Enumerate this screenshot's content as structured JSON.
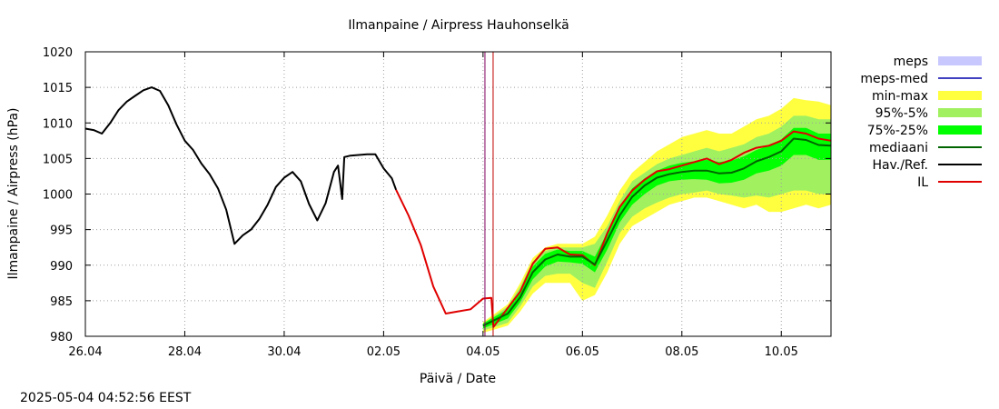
{
  "timestamp": "2025-05-04 04:52:56 EEST",
  "chart_data": {
    "type": "line",
    "title": "Ilmanpaine / Airpress Hauhonselkä",
    "xlabel": "Päivä / Date",
    "ylabel": "Ilmanpaine / Airpress (hPa)",
    "xlim": [
      "2025-04-26",
      "2025-05-11"
    ],
    "ylim": [
      980,
      1020
    ],
    "yticks": [
      980,
      985,
      990,
      995,
      1000,
      1005,
      1010,
      1015,
      1020
    ],
    "xticks": [
      "26.04",
      "28.04",
      "30.04",
      "02.05",
      "04.05",
      "06.05",
      "08.05",
      "10.05"
    ],
    "grid": true,
    "forecast_time": "2025-05-04 04:52",
    "legend": {
      "position": "right",
      "entries": [
        {
          "label": "meps",
          "color": "#c8c8ff",
          "style": "band"
        },
        {
          "label": "meps-med",
          "color": "#4040c0",
          "style": "line"
        },
        {
          "label": "min-max",
          "color": "#ffff40",
          "style": "band"
        },
        {
          "label": "95%-5%",
          "color": "#a0f060",
          "style": "band"
        },
        {
          "label": "75%-25%",
          "color": "#00ff00",
          "style": "band"
        },
        {
          "label": "mediaani",
          "color": "#006400",
          "style": "line"
        },
        {
          "label": "Hav./Ref.",
          "color": "#000000",
          "style": "line"
        },
        {
          "label": "IL",
          "color": "#e00000",
          "style": "line"
        }
      ]
    },
    "series": [
      {
        "name": "Hav./Ref.",
        "color": "#000000",
        "points": [
          [
            "2025-04-26 00:00",
            1009.2
          ],
          [
            "2025-04-26 04:00",
            1009.0
          ],
          [
            "2025-04-26 08:00",
            1008.5
          ],
          [
            "2025-04-26 12:00",
            1010.0
          ],
          [
            "2025-04-26 16:00",
            1011.8
          ],
          [
            "2025-04-26 20:00",
            1013.0
          ],
          [
            "2025-04-27 00:00",
            1013.8
          ],
          [
            "2025-04-27 04:00",
            1014.6
          ],
          [
            "2025-04-27 08:00",
            1015.0
          ],
          [
            "2025-04-27 12:00",
            1014.5
          ],
          [
            "2025-04-27 16:00",
            1012.5
          ],
          [
            "2025-04-27 20:00",
            1009.8
          ],
          [
            "2025-04-28 00:00",
            1007.5
          ],
          [
            "2025-04-28 04:00",
            1006.2
          ],
          [
            "2025-04-28 08:00",
            1004.3
          ],
          [
            "2025-04-28 12:00",
            1002.8
          ],
          [
            "2025-04-28 16:00",
            1000.8
          ],
          [
            "2025-04-28 20:00",
            997.8
          ],
          [
            "2025-04-29 00:00",
            993.0
          ],
          [
            "2025-04-29 04:00",
            994.2
          ],
          [
            "2025-04-29 08:00",
            995.0
          ],
          [
            "2025-04-29 12:00",
            996.5
          ],
          [
            "2025-04-29 16:00",
            998.5
          ],
          [
            "2025-04-29 20:00",
            1001.0
          ],
          [
            "2025-04-30 00:00",
            1002.3
          ],
          [
            "2025-04-30 04:00",
            1003.1
          ],
          [
            "2025-04-30 08:00",
            1001.8
          ],
          [
            "2025-04-30 12:00",
            998.6
          ],
          [
            "2025-04-30 16:00",
            996.3
          ],
          [
            "2025-04-30 20:00",
            998.7
          ],
          [
            "2025-05-01 00:00",
            1003.1
          ],
          [
            "2025-05-01 02:00",
            1004.0
          ],
          [
            "2025-05-01 04:00",
            999.3
          ],
          [
            "2025-05-01 05:00",
            1005.2
          ],
          [
            "2025-05-01 08:00",
            1005.4
          ],
          [
            "2025-05-01 16:00",
            1005.6
          ],
          [
            "2025-05-01 20:00",
            1005.6
          ],
          [
            "2025-05-02 00:00",
            1003.6
          ],
          [
            "2025-05-02 04:00",
            1002.2
          ],
          [
            "2025-05-02 06:00",
            1000.6
          ]
        ]
      },
      {
        "name": "IL",
        "color": "#e00000",
        "points": [
          [
            "2025-05-02 06:00",
            1000.6
          ],
          [
            "2025-05-02 12:00",
            997.0
          ],
          [
            "2025-05-02 18:00",
            992.8
          ],
          [
            "2025-05-03 00:00",
            987.0
          ],
          [
            "2025-05-03 06:00",
            983.2
          ],
          [
            "2025-05-03 12:00",
            983.5
          ],
          [
            "2025-05-03 18:00",
            983.8
          ],
          [
            "2025-05-04 00:00",
            985.3
          ],
          [
            "2025-05-04 04:00",
            985.4
          ],
          [
            "2025-05-04 05:00",
            981.3
          ],
          [
            "2025-05-04 12:00",
            984.0
          ],
          [
            "2025-05-04 18:00",
            986.3
          ],
          [
            "2025-05-05 00:00",
            990.2
          ],
          [
            "2025-05-05 06:00",
            992.3
          ],
          [
            "2025-05-05 12:00",
            992.5
          ],
          [
            "2025-05-05 18:00",
            991.5
          ],
          [
            "2025-05-06 00:00",
            991.4
          ],
          [
            "2025-05-06 06:00",
            990.0
          ],
          [
            "2025-05-06 12:00",
            994.5
          ],
          [
            "2025-05-06 18:00",
            998.2
          ],
          [
            "2025-05-07 00:00",
            1000.5
          ],
          [
            "2025-05-07 06:00",
            1002.0
          ],
          [
            "2025-05-07 12:00",
            1003.2
          ],
          [
            "2025-05-07 18:00",
            1003.5
          ],
          [
            "2025-05-08 00:00",
            1004.0
          ],
          [
            "2025-05-08 06:00",
            1004.5
          ],
          [
            "2025-05-08 12:00",
            1005.0
          ],
          [
            "2025-05-08 18:00",
            1004.2
          ],
          [
            "2025-05-09 00:00",
            1004.8
          ],
          [
            "2025-05-09 06:00",
            1005.8
          ],
          [
            "2025-05-09 12:00",
            1006.5
          ],
          [
            "2025-05-09 18:00",
            1006.8
          ],
          [
            "2025-05-10 00:00",
            1007.5
          ],
          [
            "2025-05-10 06:00",
            1008.8
          ],
          [
            "2025-05-10 12:00",
            1008.5
          ],
          [
            "2025-05-10 18:00",
            1007.8
          ],
          [
            "2025-05-11 00:00",
            1007.5
          ]
        ]
      },
      {
        "name": "mediaani",
        "color": "#006400",
        "points": [
          [
            "2025-05-04 00:00",
            981.5
          ],
          [
            "2025-05-04 12:00",
            983.2
          ],
          [
            "2025-05-04 18:00",
            985.5
          ],
          [
            "2025-05-05 00:00",
            989.0
          ],
          [
            "2025-05-05 06:00",
            990.8
          ],
          [
            "2025-05-05 12:00",
            991.5
          ],
          [
            "2025-05-05 18:00",
            991.2
          ],
          [
            "2025-05-06 00:00",
            991.2
          ],
          [
            "2025-05-06 06:00",
            990.1
          ],
          [
            "2025-05-06 12:00",
            993.5
          ],
          [
            "2025-05-06 18:00",
            997.0
          ],
          [
            "2025-05-07 00:00",
            999.6
          ],
          [
            "2025-05-07 06:00",
            1001.2
          ],
          [
            "2025-05-07 12:00",
            1002.3
          ],
          [
            "2025-05-07 18:00",
            1002.8
          ],
          [
            "2025-05-08 00:00",
            1003.1
          ],
          [
            "2025-05-08 06:00",
            1003.3
          ],
          [
            "2025-05-08 12:00",
            1003.3
          ],
          [
            "2025-05-08 18:00",
            1002.9
          ],
          [
            "2025-05-09 00:00",
            1003.0
          ],
          [
            "2025-05-09 06:00",
            1003.6
          ],
          [
            "2025-05-09 12:00",
            1004.6
          ],
          [
            "2025-05-09 18:00",
            1005.2
          ],
          [
            "2025-05-10 00:00",
            1006.0
          ],
          [
            "2025-05-10 06:00",
            1007.8
          ],
          [
            "2025-05-10 12:00",
            1007.6
          ],
          [
            "2025-05-10 18:00",
            1006.9
          ],
          [
            "2025-05-11 00:00",
            1006.8
          ]
        ]
      }
    ],
    "bands": [
      {
        "name": "min-max",
        "color": "#ffff40",
        "points": [
          [
            "2025-05-04 00:00",
            980.5,
            982.0
          ],
          [
            "2025-05-04 12:00",
            981.5,
            984.5
          ],
          [
            "2025-05-04 18:00",
            983.5,
            987.5
          ],
          [
            "2025-05-05 00:00",
            986.0,
            991.0
          ],
          [
            "2025-05-05 06:00",
            987.5,
            992.5
          ],
          [
            "2025-05-05 12:00",
            987.5,
            993.0
          ],
          [
            "2025-05-05 18:00",
            987.5,
            993.0
          ],
          [
            "2025-05-06 00:00",
            985.0,
            993.0
          ],
          [
            "2025-05-06 06:00",
            985.8,
            994.0
          ],
          [
            "2025-05-06 12:00",
            989.0,
            997.0
          ],
          [
            "2025-05-06 18:00",
            993.0,
            1000.5
          ],
          [
            "2025-05-07 00:00",
            995.5,
            1003.0
          ],
          [
            "2025-05-07 06:00",
            996.5,
            1004.5
          ],
          [
            "2025-05-07 12:00",
            997.5,
            1006.0
          ],
          [
            "2025-05-07 18:00",
            998.5,
            1007.0
          ],
          [
            "2025-05-08 00:00",
            999.0,
            1008.0
          ],
          [
            "2025-05-08 06:00",
            999.5,
            1008.5
          ],
          [
            "2025-05-08 12:00",
            999.5,
            1009.0
          ],
          [
            "2025-05-08 18:00",
            999.0,
            1008.5
          ],
          [
            "2025-05-09 00:00",
            998.5,
            1008.5
          ],
          [
            "2025-05-09 06:00",
            998.0,
            1009.5
          ],
          [
            "2025-05-09 12:00",
            998.5,
            1010.5
          ],
          [
            "2025-05-09 18:00",
            997.5,
            1011.0
          ],
          [
            "2025-05-10 00:00",
            997.5,
            1012.0
          ],
          [
            "2025-05-10 06:00",
            998.0,
            1013.5
          ],
          [
            "2025-05-10 12:00",
            998.5,
            1013.2
          ],
          [
            "2025-05-10 18:00",
            998.0,
            1013.0
          ],
          [
            "2025-05-11 00:00",
            998.5,
            1012.5
          ]
        ]
      },
      {
        "name": "95%-5%",
        "color": "#a0f060",
        "points": [
          [
            "2025-05-04 00:00",
            980.8,
            981.8
          ],
          [
            "2025-05-04 12:00",
            981.9,
            984.2
          ],
          [
            "2025-05-04 18:00",
            984.2,
            987.0
          ],
          [
            "2025-05-05 00:00",
            987.0,
            990.5
          ],
          [
            "2025-05-05 06:00",
            988.5,
            992.0
          ],
          [
            "2025-05-05 12:00",
            988.8,
            992.5
          ],
          [
            "2025-05-05 18:00",
            988.8,
            992.5
          ],
          [
            "2025-05-06 00:00",
            987.5,
            992.5
          ],
          [
            "2025-05-06 06:00",
            986.8,
            993.0
          ],
          [
            "2025-05-06 12:00",
            990.5,
            995.5
          ],
          [
            "2025-05-06 18:00",
            994.5,
            999.0
          ],
          [
            "2025-05-07 00:00",
            996.8,
            1001.8
          ],
          [
            "2025-05-07 06:00",
            998.0,
            1003.0
          ],
          [
            "2025-05-07 12:00",
            998.8,
            1004.2
          ],
          [
            "2025-05-07 18:00",
            999.5,
            1005.0
          ],
          [
            "2025-05-08 00:00",
            1000.0,
            1005.5
          ],
          [
            "2025-05-08 06:00",
            1000.2,
            1006.0
          ],
          [
            "2025-05-08 12:00",
            1000.5,
            1006.5
          ],
          [
            "2025-05-08 18:00",
            1000.0,
            1006.0
          ],
          [
            "2025-05-09 00:00",
            999.8,
            1006.5
          ],
          [
            "2025-05-09 06:00",
            999.5,
            1007.0
          ],
          [
            "2025-05-09 12:00",
            999.8,
            1008.0
          ],
          [
            "2025-05-09 18:00",
            999.5,
            1008.5
          ],
          [
            "2025-05-10 00:00",
            1000.0,
            1009.5
          ],
          [
            "2025-05-10 06:00",
            1000.5,
            1011.0
          ],
          [
            "2025-05-10 12:00",
            1000.5,
            1011.0
          ],
          [
            "2025-05-10 18:00",
            1000.0,
            1010.5
          ],
          [
            "2025-05-11 00:00",
            1000.0,
            1010.5
          ]
        ]
      },
      {
        "name": "75%-25%",
        "color": "#00ff00",
        "points": [
          [
            "2025-05-04 00:00",
            981.1,
            981.8
          ],
          [
            "2025-05-04 12:00",
            982.5,
            983.8
          ],
          [
            "2025-05-04 18:00",
            984.8,
            986.3
          ],
          [
            "2025-05-05 00:00",
            988.0,
            989.8
          ],
          [
            "2025-05-05 06:00",
            989.8,
            991.6
          ],
          [
            "2025-05-05 12:00",
            990.5,
            992.2
          ],
          [
            "2025-05-05 18:00",
            990.4,
            992.0
          ],
          [
            "2025-05-06 00:00",
            990.2,
            992.0
          ],
          [
            "2025-05-06 06:00",
            989.0,
            991.2
          ],
          [
            "2025-05-06 12:00",
            992.2,
            994.6
          ],
          [
            "2025-05-06 18:00",
            996.0,
            998.0
          ],
          [
            "2025-05-07 00:00",
            998.5,
            1000.8
          ],
          [
            "2025-05-07 06:00",
            1000.0,
            1002.2
          ],
          [
            "2025-05-07 12:00",
            1001.2,
            1003.3
          ],
          [
            "2025-05-07 18:00",
            1001.8,
            1004.0
          ],
          [
            "2025-05-08 00:00",
            1002.0,
            1004.4
          ],
          [
            "2025-05-08 06:00",
            1002.1,
            1004.6
          ],
          [
            "2025-05-08 12:00",
            1002.0,
            1004.8
          ],
          [
            "2025-05-08 18:00",
            1001.5,
            1004.5
          ],
          [
            "2025-05-09 00:00",
            1001.6,
            1004.7
          ],
          [
            "2025-05-09 06:00",
            1002.0,
            1005.3
          ],
          [
            "2025-05-09 12:00",
            1002.9,
            1006.2
          ],
          [
            "2025-05-09 18:00",
            1003.3,
            1006.8
          ],
          [
            "2025-05-10 00:00",
            1004.0,
            1007.7
          ],
          [
            "2025-05-10 06:00",
            1005.5,
            1009.3
          ],
          [
            "2025-05-10 12:00",
            1005.5,
            1009.3
          ],
          [
            "2025-05-10 18:00",
            1004.8,
            1008.5
          ],
          [
            "2025-05-11 00:00",
            1004.8,
            1008.5
          ]
        ]
      }
    ]
  }
}
